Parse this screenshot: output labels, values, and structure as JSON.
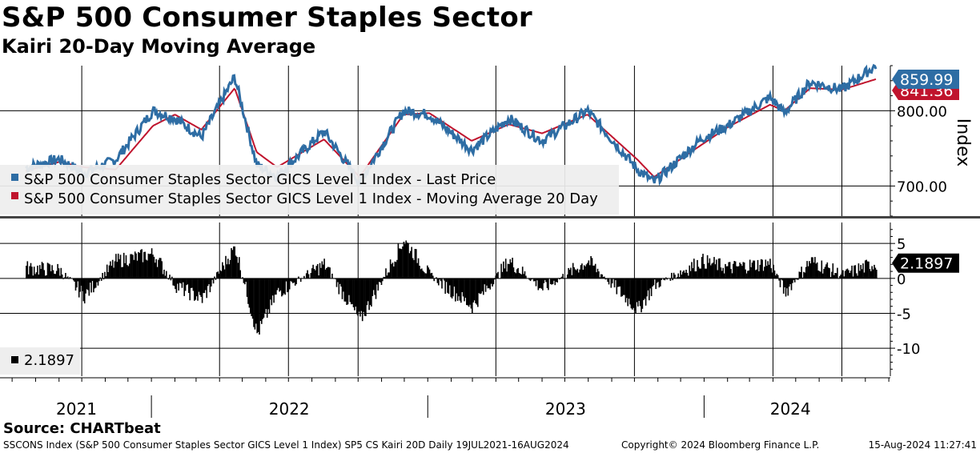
{
  "header": {
    "title": "S&P 500 Consumer Staples Sector",
    "subtitle": "Kairi 20-Day Moving Average"
  },
  "footer": {
    "source": "Source: CHARTbeat",
    "description": "SSCONS Index (S&P 500 Consumer Staples Sector GICS Level 1 Index) SP5 CS Kairi 20D  Daily 19JUL2021-16AUG2024",
    "copyright": "Copyright© 2024 Bloomberg Finance L.P.",
    "timestamp": "15-Aug-2024 11:27:41"
  },
  "colors": {
    "price": "#2e6da4",
    "moving_average": "#c0142d",
    "kairi": "#000000",
    "legend_bg": "#eeeeee"
  },
  "chart_data": [
    {
      "type": "line",
      "xlabel": "",
      "ylabel": "Index",
      "ylim": [
        660,
        860
      ],
      "yticks": [
        700,
        800
      ],
      "ytick_labels": [
        "700.00",
        "800.00"
      ],
      "grid": true,
      "legend_position": "bottom-left",
      "x_period_labels": [
        "2021",
        "2022",
        "2023",
        "2024"
      ],
      "x": [
        "2021-07-19",
        "2021-09-01",
        "2021-10-04",
        "2021-11-15",
        "2022-01-03",
        "2022-02-01",
        "2022-03-08",
        "2022-04-21",
        "2022-05-20",
        "2022-06-16",
        "2022-08-17",
        "2022-10-03",
        "2022-11-30",
        "2023-01-03",
        "2023-02-28",
        "2023-04-18",
        "2023-06-01",
        "2023-07-31",
        "2023-10-05",
        "2023-10-27",
        "2023-12-29",
        "2024-02-01",
        "2024-03-28",
        "2024-04-16",
        "2024-05-20",
        "2024-07-01",
        "2024-08-15"
      ],
      "series": [
        {
          "name": "S&P 500 Consumer Staples Sector GICS Level 1 Index - Last Price",
          "last_value_label": "859.99",
          "values": [
            724,
            736,
            717,
            735,
            800,
            790,
            765,
            845,
            728,
            713,
            773,
            705,
            800,
            795,
            748,
            790,
            760,
            800,
            722,
            705,
            763,
            780,
            818,
            797,
            838,
            828,
            860
          ]
        },
        {
          "name": "S&P 500 Consumer Staples Sector GICS Level 1 Index - Moving Average 20 Day",
          "last_value_label": "841.36",
          "values": [
            720,
            732,
            725,
            722,
            780,
            795,
            775,
            830,
            745,
            725,
            762,
            712,
            795,
            797,
            760,
            782,
            770,
            795,
            735,
            712,
            755,
            778,
            808,
            800,
            830,
            828,
            842
          ]
        }
      ]
    },
    {
      "type": "bar",
      "xlabel": "",
      "ylabel": "",
      "ylim": [
        -14,
        8
      ],
      "yticks": [
        5,
        0,
        -5,
        -10
      ],
      "ytick_labels": [
        "5",
        "0",
        "-5",
        "-10"
      ],
      "grid": true,
      "legend_position": "bottom-left",
      "x": [
        "2021-07-19",
        "2021-09-01",
        "2021-10-04",
        "2021-11-15",
        "2022-01-03",
        "2022-02-01",
        "2022-03-08",
        "2022-04-21",
        "2022-05-20",
        "2022-06-16",
        "2022-08-17",
        "2022-10-03",
        "2022-11-30",
        "2023-01-03",
        "2023-02-28",
        "2023-04-18",
        "2023-06-01",
        "2023-07-31",
        "2023-10-05",
        "2023-10-27",
        "2023-12-29",
        "2024-02-01",
        "2024-03-28",
        "2024-04-16",
        "2024-05-20",
        "2024-07-01",
        "2024-08-15"
      ],
      "series": [
        {
          "name": "2.1897",
          "last_value_label": "2.1897",
          "values": [
            1.5,
            1.2,
            -2.5,
            2.5,
            3.5,
            -1,
            -3,
            4.5,
            -8,
            -2,
            2,
            -6,
            5.5,
            0.5,
            -4,
            2.5,
            -1.5,
            2.5,
            -4.5,
            -1,
            2.5,
            1.5,
            2.2,
            -2,
            2.5,
            0.5,
            2.19
          ]
        }
      ]
    }
  ]
}
